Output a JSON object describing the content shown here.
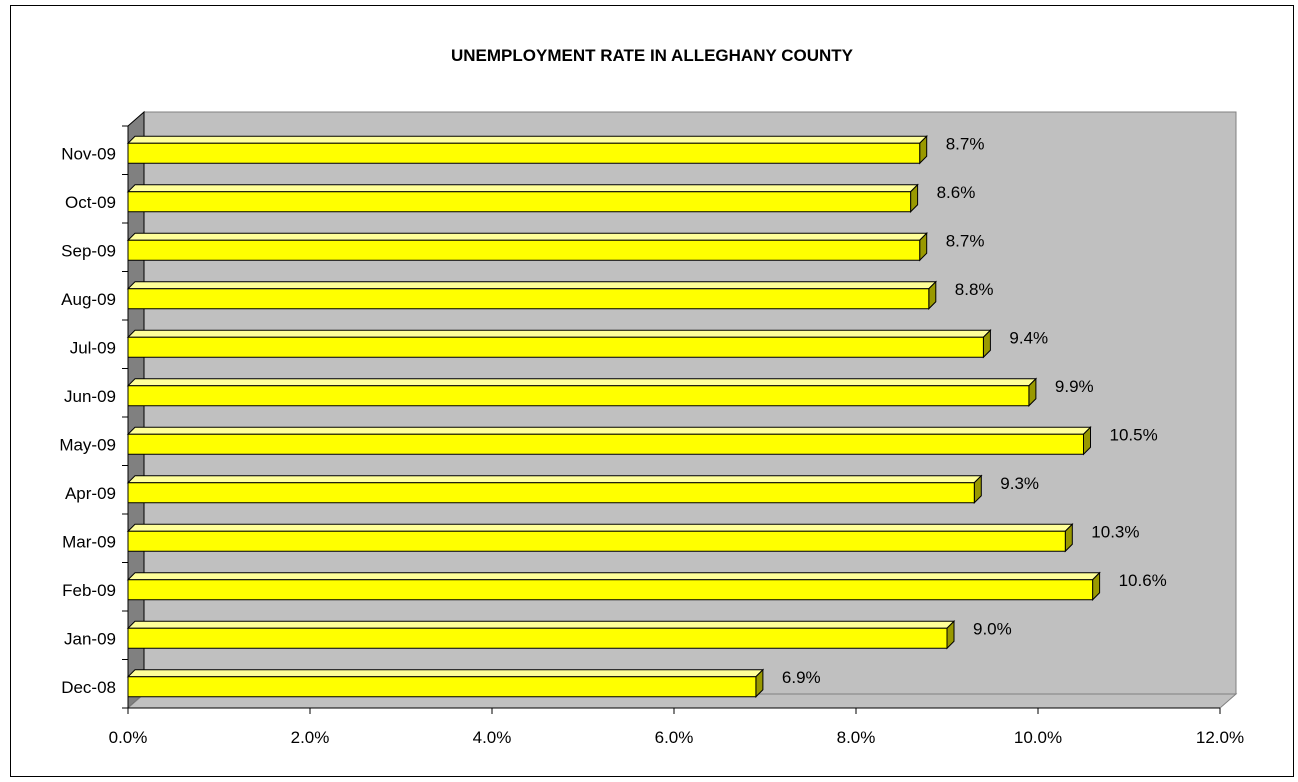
{
  "chart_data": {
    "type": "bar",
    "orientation": "horizontal",
    "title": "UNEMPLOYMENT RATE IN ALLEGHANY COUNTY",
    "categories": [
      "Nov-09",
      "Oct-09",
      "Sep-09",
      "Aug-09",
      "Jul-09",
      "Jun-09",
      "May-09",
      "Apr-09",
      "Mar-09",
      "Feb-09",
      "Jan-09",
      "Dec-08"
    ],
    "values": [
      8.7,
      8.6,
      8.7,
      8.8,
      9.4,
      9.9,
      10.5,
      9.3,
      10.3,
      10.6,
      9.0,
      6.9
    ],
    "value_labels": [
      "8.7%",
      "8.6%",
      "8.7%",
      "8.8%",
      "9.4%",
      "9.9%",
      "10.5%",
      "9.3%",
      "10.3%",
      "10.6%",
      "9.0%",
      "6.9%"
    ],
    "x_ticks": [
      0,
      2,
      4,
      6,
      8,
      10,
      12
    ],
    "x_tick_labels": [
      "0.0%",
      "2.0%",
      "4.0%",
      "6.0%",
      "8.0%",
      "10.0%",
      "12.0%"
    ],
    "xlim": [
      0,
      12
    ],
    "xlabel": "",
    "ylabel": "",
    "grid": false,
    "legend": "none",
    "colors": {
      "bar_face": "#ffff00",
      "bar_top": "#ffff99",
      "bar_side": "#999900",
      "plot_wall": "#c0c0c0",
      "side_wall": "#808080"
    }
  }
}
